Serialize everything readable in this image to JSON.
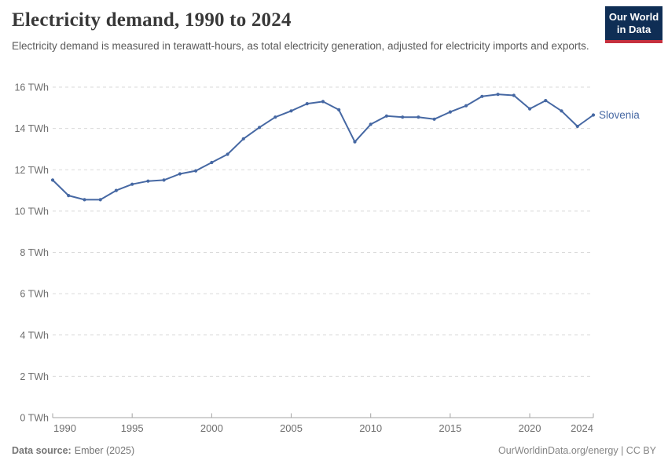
{
  "header": {
    "title": "Electricity demand, 1990 to 2024",
    "subtitle": "Electricity demand is measured in terawatt-hours, as total electricity generation, adjusted for electricity imports and exports."
  },
  "logo": {
    "line1": "Our World",
    "line2": "in Data",
    "bg_color": "#0f2e55",
    "accent_color": "#c5303e"
  },
  "chart_data": {
    "type": "line",
    "title": "Electricity demand, 1990 to 2024",
    "ylabel": "",
    "xlabel": "",
    "entity_label": "Slovenia",
    "x": [
      1990,
      1991,
      1992,
      1993,
      1994,
      1995,
      1996,
      1997,
      1998,
      1999,
      2000,
      2001,
      2002,
      2003,
      2004,
      2005,
      2006,
      2007,
      2008,
      2009,
      2010,
      2011,
      2012,
      2013,
      2014,
      2015,
      2016,
      2017,
      2018,
      2019,
      2020,
      2021,
      2022,
      2023,
      2024
    ],
    "series": [
      {
        "name": "Slovenia",
        "color": "#4668a3",
        "values": [
          11.5,
          10.75,
          10.55,
          10.55,
          11.0,
          11.3,
          11.45,
          11.5,
          11.8,
          11.95,
          12.35,
          12.75,
          13.5,
          14.05,
          14.55,
          14.85,
          15.2,
          15.3,
          14.9,
          13.35,
          14.2,
          14.6,
          14.55,
          14.55,
          14.45,
          14.8,
          15.1,
          15.55,
          15.65,
          15.6,
          14.95,
          15.35,
          14.85,
          14.1,
          14.65
        ]
      }
    ],
    "xlim": [
      1990,
      2024
    ],
    "ylim": [
      0,
      16
    ],
    "xticks": [
      1990,
      1995,
      2000,
      2005,
      2010,
      2015,
      2020,
      2024
    ],
    "yticks": [
      0,
      2,
      4,
      6,
      8,
      10,
      12,
      14,
      16
    ],
    "ytick_suffix": " TWh",
    "grid": "horizontal-dashed",
    "legend_position": "line-end-label",
    "grid_color": "#d9d9d9",
    "axis_color": "#a3a3a3",
    "tick_text_color": "#6e6e6e"
  },
  "footer": {
    "source_label": "Data source:",
    "source_value": "Ember (2025)",
    "credit": "OurWorldinData.org/energy | CC BY"
  }
}
